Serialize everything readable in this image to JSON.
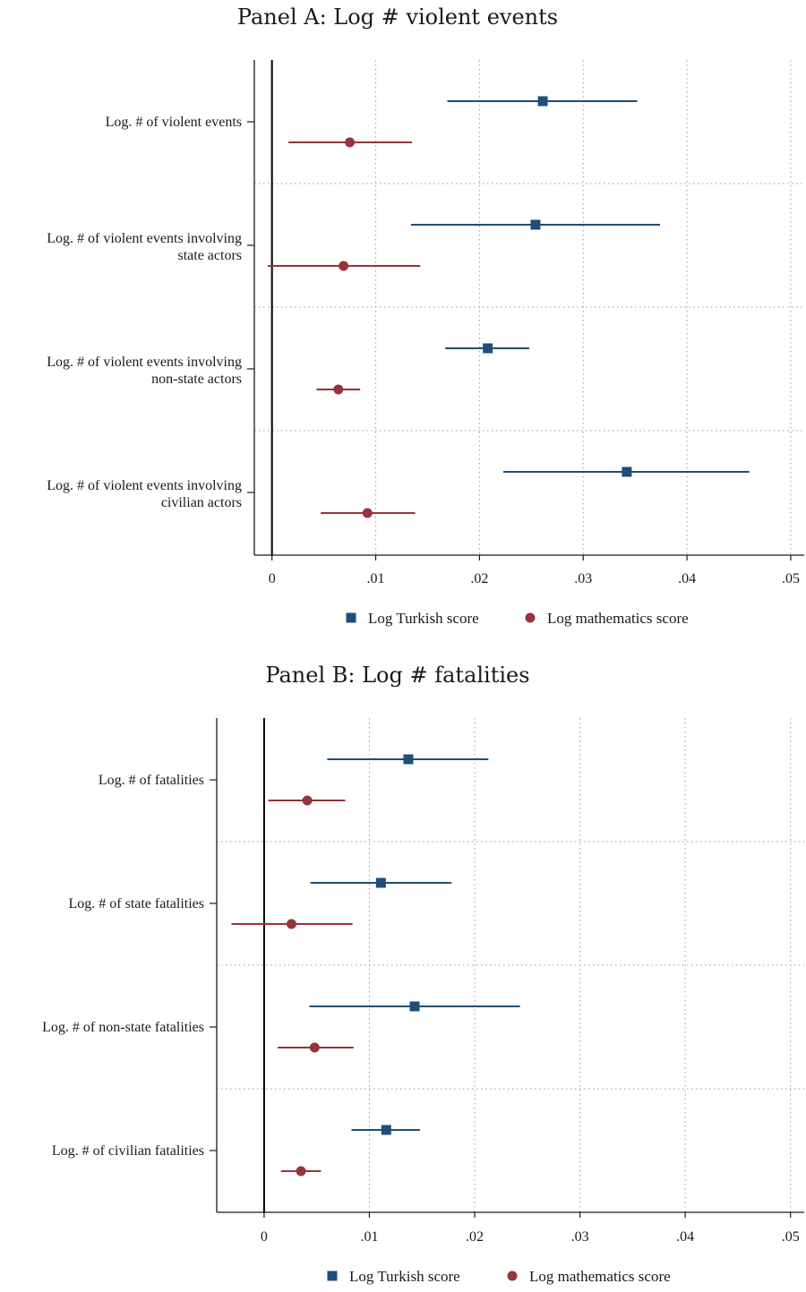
{
  "chart_data": [
    {
      "type": "coefficient-plot",
      "title": "Panel A: Log # violent events",
      "xlim": [
        -0.0017,
        0.0513
      ],
      "xticks": [
        "0",
        ".01",
        ".02",
        ".03",
        ".04",
        ".05"
      ],
      "xtick_values": [
        0,
        0.01,
        0.02,
        0.03,
        0.04,
        0.05
      ],
      "grid": "vertical dotted",
      "legend_position": "bottom",
      "categories": [
        [
          "Log. # of violent events"
        ],
        [
          "Log. # of violent events involving",
          "state actors"
        ],
        [
          "Log. # of violent events involving",
          "non-state actors"
        ],
        [
          "Log. # of violent events involving",
          "civilian actors"
        ]
      ],
      "series": [
        {
          "name": "Log Turkish score",
          "color": "#1f4e79",
          "marker": "square",
          "estimates": [
            0.0261,
            0.0254,
            0.0208,
            0.0342
          ],
          "ci_low": [
            0.0169,
            0.0134,
            0.0167,
            0.0223
          ],
          "ci_high": [
            0.0352,
            0.0374,
            0.0248,
            0.046
          ]
        },
        {
          "name": "Log mathematics score",
          "color": "#96333c",
          "marker": "circle",
          "estimates": [
            0.0075,
            0.0069,
            0.0064,
            0.0092
          ],
          "ci_low": [
            0.0016,
            -0.0004,
            0.0043,
            0.0047
          ],
          "ci_high": [
            0.0135,
            0.0143,
            0.0085,
            0.0138
          ]
        }
      ]
    },
    {
      "type": "coefficient-plot",
      "title": "Panel B: Log # fatalities",
      "xlim": [
        -0.0045,
        0.0513
      ],
      "xticks": [
        "0",
        ".01",
        ".02",
        ".03",
        ".04",
        ".05"
      ],
      "xtick_values": [
        0,
        0.01,
        0.02,
        0.03,
        0.04,
        0.05
      ],
      "grid": "vertical dotted",
      "legend_position": "bottom",
      "categories": [
        [
          "Log. # of fatalities"
        ],
        [
          "Log. # of state fatalities"
        ],
        [
          "Log. # of non-state fatalities"
        ],
        [
          "Log. # of civilian fatalities"
        ]
      ],
      "series": [
        {
          "name": "Log Turkish score",
          "color": "#1f4e79",
          "marker": "square",
          "estimates": [
            0.0137,
            0.0111,
            0.0143,
            0.0116
          ],
          "ci_low": [
            0.006,
            0.0044,
            0.0043,
            0.0083
          ],
          "ci_high": [
            0.0213,
            0.0178,
            0.0243,
            0.0148
          ]
        },
        {
          "name": "Log mathematics score",
          "color": "#96333c",
          "marker": "circle",
          "estimates": [
            0.0041,
            0.0026,
            0.0048,
            0.0035
          ],
          "ci_low": [
            0.0004,
            -0.0031,
            0.0013,
            0.0016
          ],
          "ci_high": [
            0.0077,
            0.0084,
            0.0085,
            0.0054
          ]
        }
      ]
    }
  ]
}
